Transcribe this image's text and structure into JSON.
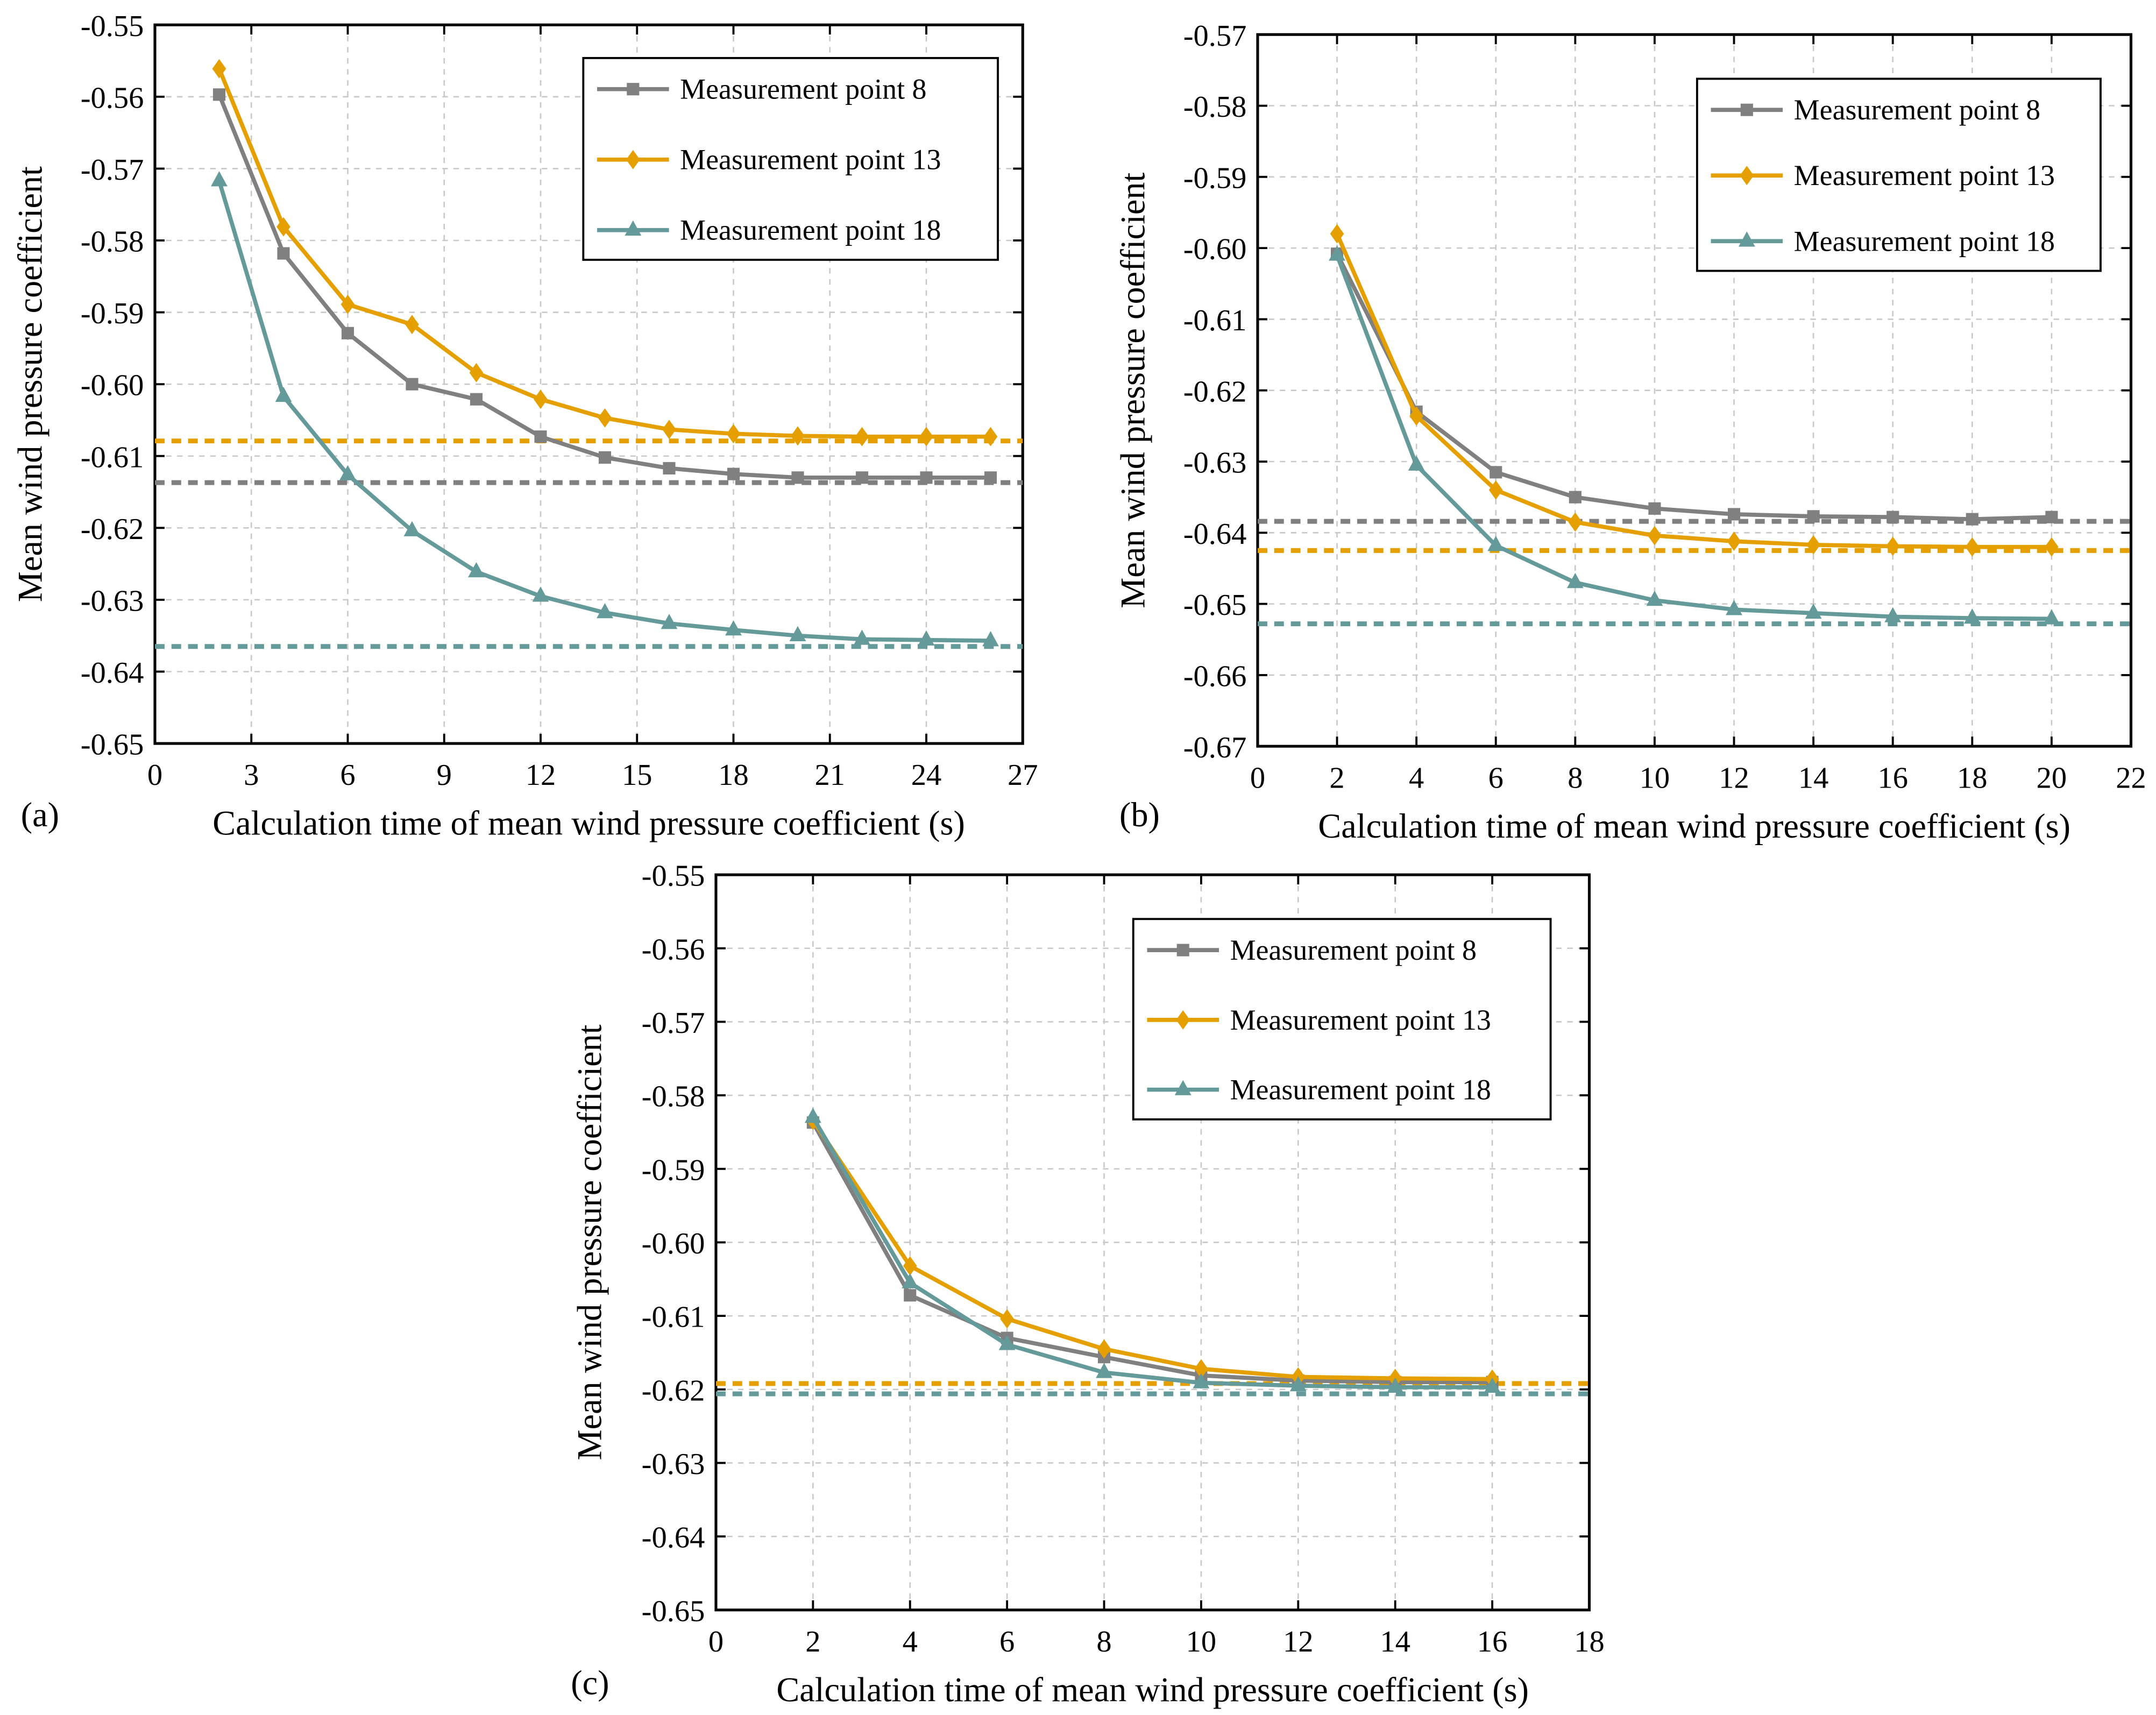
{
  "colors": {
    "pt8": "#808080",
    "pt13": "#E5A000",
    "pt18": "#659A9A"
  },
  "chart_data": [
    {
      "type": "line",
      "panel_label": "(a)",
      "xlabel": "Calculation time of mean wind pressure coefficient (s)",
      "ylabel": "Mean wind pressure coefficient",
      "xlim": [
        0,
        27
      ],
      "xticks": [
        0,
        3,
        6,
        9,
        12,
        15,
        18,
        21,
        24,
        27
      ],
      "ylim": [
        -0.65,
        -0.55
      ],
      "yticks": [
        -0.65,
        -0.64,
        -0.63,
        -0.62,
        -0.61,
        -0.6,
        -0.59,
        -0.58,
        -0.57,
        -0.56,
        -0.55
      ],
      "grid": true,
      "legend_position": "top-right",
      "x": [
        2,
        4,
        6,
        8,
        10,
        12,
        14,
        16,
        18,
        20,
        22,
        24,
        26
      ],
      "series": [
        {
          "name": "Measurement point 8",
          "key": "pt8",
          "marker": "square",
          "values": [
            -0.5597,
            -0.5818,
            -0.5929,
            -0.6,
            -0.6021,
            -0.6073,
            -0.6102,
            -0.6117,
            -0.6125,
            -0.613,
            -0.613,
            -0.613,
            -0.613
          ],
          "reference": -0.6137
        },
        {
          "name": "Measurement point 13",
          "key": "pt13",
          "marker": "diamond",
          "values": [
            -0.5561,
            -0.5781,
            -0.5889,
            -0.5917,
            -0.5984,
            -0.6021,
            -0.6047,
            -0.6063,
            -0.6069,
            -0.6072,
            -0.6073,
            -0.6073,
            -0.6073
          ],
          "reference": -0.6079
        },
        {
          "name": "Measurement point 18",
          "key": "pt18",
          "marker": "triangle",
          "values": [
            -0.5717,
            -0.6017,
            -0.6126,
            -0.6204,
            -0.6261,
            -0.6295,
            -0.6318,
            -0.6333,
            -0.6342,
            -0.635,
            -0.6355,
            -0.6356,
            -0.6357
          ],
          "reference": -0.6365
        }
      ]
    },
    {
      "type": "line",
      "panel_label": "(b)",
      "xlabel": "Calculation time of mean wind pressure coefficient (s)",
      "ylabel": "Mean wind pressure coefficient",
      "xlim": [
        0,
        22
      ],
      "xticks": [
        0,
        2,
        4,
        6,
        8,
        10,
        12,
        14,
        16,
        18,
        20,
        22
      ],
      "ylim": [
        -0.67,
        -0.57
      ],
      "yticks": [
        -0.67,
        -0.66,
        -0.65,
        -0.64,
        -0.63,
        -0.62,
        -0.61,
        -0.6,
        -0.59,
        -0.58,
        -0.57
      ],
      "grid": true,
      "legend_position": "top-right",
      "x": [
        2,
        4,
        6,
        8,
        10,
        12,
        14,
        16,
        18,
        20
      ],
      "series": [
        {
          "name": "Measurement point 8",
          "key": "pt8",
          "marker": "square",
          "values": [
            -0.6008,
            -0.623,
            -0.6315,
            -0.635,
            -0.6366,
            -0.6374,
            -0.6377,
            -0.6378,
            -0.6381,
            -0.6378
          ],
          "reference": -0.6384
        },
        {
          "name": "Measurement point 13",
          "key": "pt13",
          "marker": "diamond",
          "values": [
            -0.598,
            -0.6236,
            -0.634,
            -0.6385,
            -0.6404,
            -0.6412,
            -0.6417,
            -0.6419,
            -0.642,
            -0.642
          ],
          "reference": -0.6425
        },
        {
          "name": "Measurement point 18",
          "key": "pt18",
          "marker": "triangle",
          "values": [
            -0.601,
            -0.6305,
            -0.6418,
            -0.647,
            -0.6495,
            -0.6508,
            -0.6513,
            -0.6518,
            -0.652,
            -0.6521
          ],
          "reference": -0.6528
        }
      ]
    },
    {
      "type": "line",
      "panel_label": "(c)",
      "xlabel": "Calculation time of mean wind pressure coefficient (s)",
      "ylabel": "Mean wind pressure coefficient",
      "xlim": [
        0,
        18
      ],
      "xticks": [
        0,
        2,
        4,
        6,
        8,
        10,
        12,
        14,
        16,
        18
      ],
      "ylim": [
        -0.65,
        -0.55
      ],
      "yticks": [
        -0.65,
        -0.64,
        -0.63,
        -0.62,
        -0.61,
        -0.6,
        -0.59,
        -0.58,
        -0.57,
        -0.56,
        -0.55
      ],
      "grid": true,
      "legend_position": "top-right",
      "x": [
        2,
        4,
        6,
        8,
        10,
        12,
        14,
        16
      ],
      "series": [
        {
          "name": "Measurement point 8",
          "key": "pt8",
          "marker": "square",
          "values": [
            -0.5837,
            -0.6072,
            -0.613,
            -0.6156,
            -0.6181,
            -0.6188,
            -0.619,
            -0.619
          ],
          "reference": null
        },
        {
          "name": "Measurement point 13",
          "key": "pt13",
          "marker": "diamond",
          "values": [
            -0.5834,
            -0.6032,
            -0.6104,
            -0.6145,
            -0.6172,
            -0.6183,
            -0.6185,
            -0.6186
          ],
          "reference": -0.6192
        },
        {
          "name": "Measurement point 18",
          "key": "pt18",
          "marker": "triangle",
          "values": [
            -0.583,
            -0.6055,
            -0.6139,
            -0.6177,
            -0.6191,
            -0.6195,
            -0.6197,
            -0.6197
          ],
          "reference": -0.6206
        }
      ]
    }
  ]
}
